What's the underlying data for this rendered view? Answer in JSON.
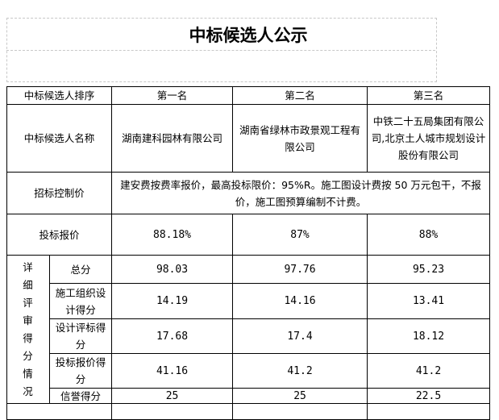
{
  "title": "中标候选人公示",
  "rows": {
    "rank_label": "中标候选人排序",
    "ranks": [
      "第一名",
      "第二名",
      "第三名"
    ],
    "name_label": "中标候选人名称",
    "names": [
      "湖南建科园林有限公司",
      "湖南省绿林市政景观工程有限公司",
      "中铁二十五局集团有限公司,北京土人城市规划设计股份有限公司"
    ],
    "control_label": "招标控制价",
    "control_text": "建安费按费率报价，最高投标限价：95%R。施工图设计费按 50 万元包干，不报价，施工图预算编制不计费。",
    "bid_label": "投标报价",
    "bids": [
      "88.18%",
      "87%",
      "88%"
    ],
    "detail_label": "详细评审得分情况",
    "scores": [
      {
        "label": "总分",
        "values": [
          "98.03",
          "97.76",
          "95.23"
        ]
      },
      {
        "label": "施工组织设计得分",
        "values": [
          "14.19",
          "14.16",
          "13.41"
        ]
      },
      {
        "label": "设计评标得分",
        "values": [
          "17.68",
          "17.4",
          "18.12"
        ]
      },
      {
        "label": "投标报价得分",
        "values": [
          "41.16",
          "41.2",
          "41.2"
        ]
      },
      {
        "label": "信誉得分",
        "values": [
          "25",
          "25",
          "22.5"
        ]
      }
    ]
  }
}
